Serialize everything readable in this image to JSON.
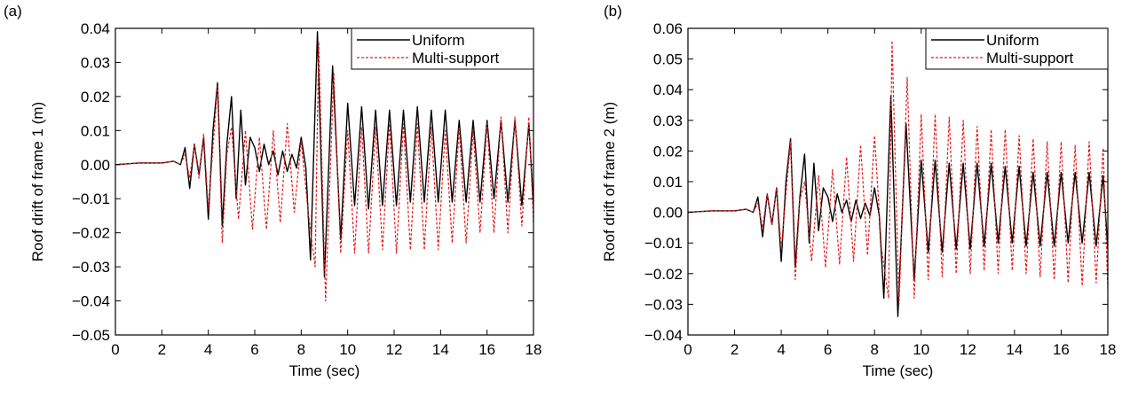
{
  "chart_data": [
    {
      "type": "line",
      "panel_label": "(a)",
      "xlabel": "Time (sec)",
      "ylabel": "Roof drift of frame 1 (m)",
      "xlim": [
        0,
        18
      ],
      "ylim": [
        -0.05,
        0.04
      ],
      "x_ticks": [
        0,
        2,
        4,
        6,
        8,
        10,
        12,
        14,
        16,
        18
      ],
      "y_ticks": [
        -0.05,
        -0.04,
        -0.03,
        -0.02,
        -0.01,
        0.0,
        0.01,
        0.02,
        0.03,
        0.04
      ],
      "x_tick_labels": [
        "0",
        "2",
        "4",
        "6",
        "8",
        "10",
        "12",
        "14",
        "16",
        "18"
      ],
      "y_tick_labels": [
        "−0.05",
        "−0.04",
        "−0.03",
        "−0.02",
        "−0.01",
        "0.00",
        "0.01",
        "0.02",
        "0.03",
        "0.04"
      ],
      "grid": false,
      "legend_position": "top-right",
      "series": [
        {
          "name": "Uniform",
          "color": "#000000",
          "style": "solid",
          "x": [
            0,
            1,
            2,
            2.5,
            2.8,
            3.0,
            3.2,
            3.4,
            3.6,
            3.8,
            4.0,
            4.2,
            4.4,
            4.6,
            4.8,
            5.0,
            5.2,
            5.4,
            5.6,
            5.8,
            6.0,
            6.2,
            6.4,
            6.6,
            6.8,
            7.0,
            7.2,
            7.4,
            7.6,
            7.8,
            8.0,
            8.2,
            8.4,
            8.7,
            9.0,
            9.35,
            9.7,
            10.0,
            10.3,
            10.6,
            10.9,
            11.2,
            11.5,
            11.8,
            12.1,
            12.4,
            12.7,
            13.0,
            13.3,
            13.6,
            13.9,
            14.2,
            14.5,
            14.8,
            15.1,
            15.4,
            15.7,
            16.0,
            16.3,
            16.6,
            16.9,
            17.2,
            17.5,
            17.8,
            18.0
          ],
          "y": [
            0.0,
            0.0005,
            0.0005,
            0.001,
            0.0,
            0.005,
            -0.007,
            0.006,
            -0.003,
            0.008,
            -0.016,
            0.01,
            0.024,
            -0.018,
            0.006,
            0.02,
            -0.01,
            0.016,
            -0.006,
            0.008,
            0.005,
            -0.002,
            0.006,
            0.0,
            0.004,
            -0.003,
            0.004,
            -0.002,
            0.003,
            -0.001,
            0.008,
            -0.001,
            -0.028,
            0.039,
            -0.033,
            0.029,
            -0.022,
            0.018,
            -0.012,
            0.017,
            -0.013,
            0.016,
            -0.012,
            0.016,
            -0.012,
            0.016,
            -0.011,
            0.017,
            -0.011,
            0.016,
            -0.011,
            0.016,
            -0.011,
            0.013,
            -0.011,
            0.013,
            -0.011,
            0.013,
            -0.01,
            0.013,
            -0.011,
            0.013,
            -0.012,
            0.012,
            -0.012
          ]
        },
        {
          "name": "Multi-support",
          "color": "#e31a1c",
          "style": "dashed",
          "x": [
            0,
            1,
            2,
            2.5,
            2.8,
            3.0,
            3.2,
            3.4,
            3.6,
            3.8,
            4.0,
            4.2,
            4.4,
            4.6,
            4.8,
            5.0,
            5.3,
            5.6,
            5.9,
            6.2,
            6.5,
            6.8,
            7.1,
            7.4,
            7.7,
            8.0,
            8.3,
            8.6,
            8.75,
            9.05,
            9.4,
            9.7,
            10.0,
            10.3,
            10.6,
            10.9,
            11.2,
            11.5,
            11.8,
            12.1,
            12.4,
            12.7,
            13.0,
            13.3,
            13.6,
            13.9,
            14.2,
            14.5,
            14.8,
            15.1,
            15.4,
            15.7,
            16.0,
            16.3,
            16.6,
            16.9,
            17.2,
            17.5,
            17.8,
            18.0
          ],
          "y": [
            0.0,
            0.0005,
            0.0005,
            0.001,
            0.0,
            0.003,
            -0.004,
            0.006,
            -0.004,
            0.009,
            -0.013,
            0.005,
            0.023,
            -0.023,
            0.003,
            0.011,
            -0.016,
            0.01,
            -0.019,
            0.008,
            -0.019,
            0.01,
            -0.017,
            0.012,
            -0.014,
            0.007,
            -0.014,
            -0.03,
            0.036,
            -0.04,
            0.027,
            -0.026,
            0.01,
            -0.026,
            0.011,
            -0.026,
            0.011,
            -0.025,
            0.012,
            -0.026,
            0.012,
            -0.025,
            0.012,
            -0.025,
            0.011,
            -0.025,
            0.01,
            -0.023,
            0.011,
            -0.023,
            0.01,
            -0.02,
            0.012,
            -0.02,
            0.014,
            -0.02,
            0.014,
            -0.018,
            0.014,
            -0.017
          ]
        }
      ]
    },
    {
      "type": "line",
      "panel_label": "(b)",
      "xlabel": "Time (sec)",
      "ylabel": "Roof drift of frame 2 (m)",
      "xlim": [
        0,
        18
      ],
      "ylim": [
        -0.04,
        0.06
      ],
      "x_ticks": [
        0,
        2,
        4,
        6,
        8,
        10,
        12,
        14,
        16,
        18
      ],
      "y_ticks": [
        -0.04,
        -0.03,
        -0.02,
        -0.01,
        0.0,
        0.01,
        0.02,
        0.03,
        0.04,
        0.05,
        0.06
      ],
      "x_tick_labels": [
        "0",
        "2",
        "4",
        "6",
        "8",
        "10",
        "12",
        "14",
        "16",
        "18"
      ],
      "y_tick_labels": [
        "−0.04",
        "−0.03",
        "−0.02",
        "−0.01",
        "0.00",
        "0.01",
        "0.02",
        "0.03",
        "0.04",
        "0.05",
        "0.06"
      ],
      "grid": false,
      "legend_position": "top-right",
      "series": [
        {
          "name": "Uniform",
          "color": "#000000",
          "style": "solid",
          "x": [
            0,
            1,
            2,
            2.5,
            2.8,
            3.0,
            3.2,
            3.4,
            3.6,
            3.8,
            4.0,
            4.2,
            4.4,
            4.6,
            4.8,
            5.0,
            5.2,
            5.4,
            5.6,
            5.8,
            6.0,
            6.2,
            6.4,
            6.6,
            6.8,
            7.0,
            7.2,
            7.4,
            7.6,
            7.8,
            8.0,
            8.2,
            8.4,
            8.7,
            9.0,
            9.35,
            9.7,
            10.0,
            10.3,
            10.6,
            10.9,
            11.2,
            11.5,
            11.8,
            12.1,
            12.4,
            12.7,
            13.0,
            13.3,
            13.6,
            13.9,
            14.2,
            14.5,
            14.8,
            15.1,
            15.4,
            15.7,
            16.0,
            16.3,
            16.6,
            16.9,
            17.2,
            17.5,
            17.8,
            18.0
          ],
          "y": [
            0.0,
            0.0005,
            0.0005,
            0.001,
            0.0,
            0.005,
            -0.008,
            0.006,
            -0.004,
            0.008,
            -0.016,
            0.01,
            0.024,
            -0.018,
            0.005,
            0.019,
            -0.01,
            0.016,
            -0.006,
            0.008,
            0.005,
            -0.003,
            0.006,
            0.0,
            0.004,
            -0.003,
            0.004,
            -0.002,
            0.003,
            -0.001,
            0.008,
            -0.001,
            -0.028,
            0.038,
            -0.034,
            0.029,
            -0.022,
            0.017,
            -0.013,
            0.017,
            -0.013,
            0.016,
            -0.012,
            0.016,
            -0.012,
            0.016,
            -0.011,
            0.016,
            -0.01,
            0.015,
            -0.01,
            0.015,
            -0.011,
            0.013,
            -0.011,
            0.013,
            -0.011,
            0.013,
            -0.01,
            0.013,
            -0.01,
            0.013,
            -0.011,
            0.012,
            -0.012
          ]
        },
        {
          "name": "Multi-support",
          "color": "#e31a1c",
          "style": "dashed",
          "x": [
            0,
            1,
            2,
            2.5,
            2.8,
            3.0,
            3.2,
            3.4,
            3.6,
            3.8,
            4.0,
            4.2,
            4.4,
            4.6,
            4.8,
            5.0,
            5.3,
            5.6,
            5.9,
            6.2,
            6.5,
            6.8,
            7.1,
            7.4,
            7.7,
            8.0,
            8.3,
            8.6,
            8.75,
            9.05,
            9.4,
            9.7,
            10.0,
            10.3,
            10.6,
            10.9,
            11.2,
            11.5,
            11.8,
            12.1,
            12.4,
            12.7,
            13.0,
            13.3,
            13.6,
            13.9,
            14.2,
            14.5,
            14.8,
            15.1,
            15.4,
            15.7,
            16.0,
            16.3,
            16.6,
            16.9,
            17.2,
            17.5,
            17.8,
            18.0
          ],
          "y": [
            0.0,
            0.0005,
            0.0005,
            0.001,
            0.0,
            0.003,
            -0.005,
            0.006,
            -0.004,
            0.008,
            -0.012,
            0.006,
            0.023,
            -0.022,
            0.004,
            0.01,
            -0.016,
            0.012,
            -0.018,
            0.014,
            -0.017,
            0.018,
            -0.016,
            0.022,
            -0.014,
            0.025,
            -0.012,
            -0.028,
            0.056,
            -0.03,
            0.044,
            -0.028,
            0.032,
            -0.022,
            0.032,
            -0.021,
            0.031,
            -0.02,
            0.03,
            -0.02,
            0.028,
            -0.019,
            0.027,
            -0.02,
            0.027,
            -0.019,
            0.025,
            -0.02,
            0.024,
            -0.021,
            0.023,
            -0.022,
            0.023,
            -0.023,
            0.022,
            -0.024,
            0.023,
            -0.023,
            0.021,
            -0.025
          ]
        }
      ]
    }
  ]
}
